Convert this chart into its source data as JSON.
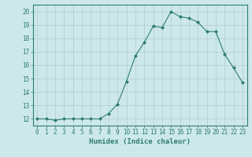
{
  "x": [
    0,
    1,
    2,
    3,
    4,
    5,
    6,
    7,
    8,
    9,
    10,
    11,
    12,
    13,
    14,
    15,
    16,
    17,
    18,
    19,
    20,
    21,
    22,
    23
  ],
  "y": [
    12,
    12,
    11.9,
    12,
    12,
    12,
    12,
    12,
    12.4,
    13.1,
    14.8,
    16.7,
    17.7,
    18.9,
    18.8,
    20.0,
    19.6,
    19.5,
    19.2,
    18.5,
    18.5,
    16.8,
    15.8,
    14.7
  ],
  "line_color": "#2e7d6e",
  "marker": "D",
  "marker_size": 2.0,
  "bg_color": "#cce8ea",
  "grid_color": "#b0ccce",
  "xlabel": "Humidex (Indice chaleur)",
  "xlim": [
    -0.5,
    23.5
  ],
  "ylim": [
    11.5,
    20.5
  ],
  "yticks": [
    12,
    13,
    14,
    15,
    16,
    17,
    18,
    19,
    20
  ],
  "xticks": [
    0,
    1,
    2,
    3,
    4,
    5,
    6,
    7,
    8,
    9,
    10,
    11,
    12,
    13,
    14,
    15,
    16,
    17,
    18,
    19,
    20,
    21,
    22,
    23
  ],
  "tick_fontsize": 5.5,
  "label_fontsize": 6.5
}
